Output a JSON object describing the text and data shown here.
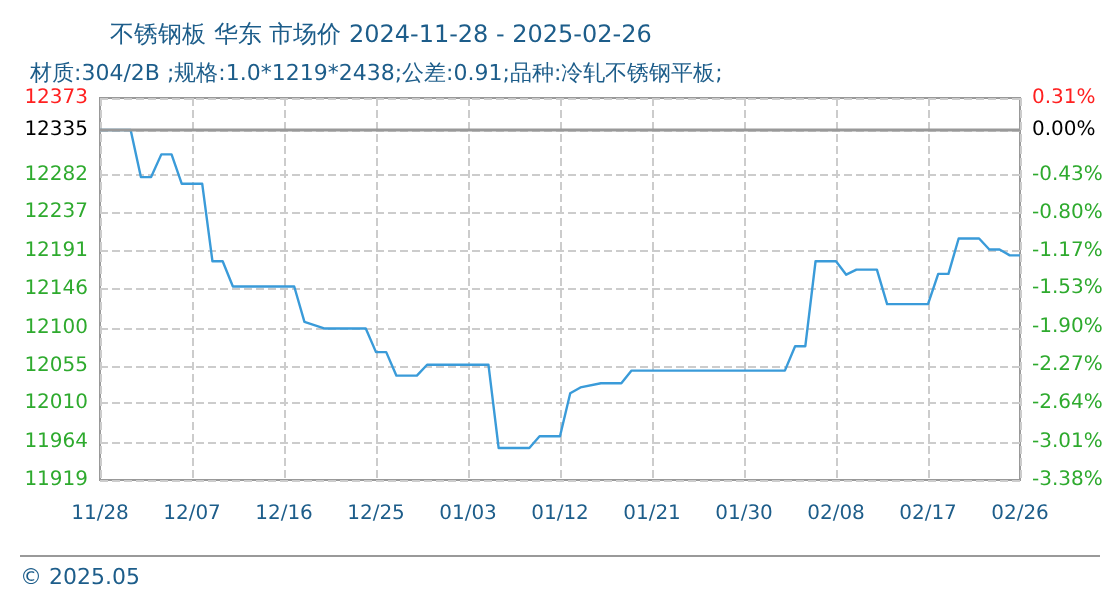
{
  "chart_data": {
    "type": "line",
    "title": "不锈钢板 华东 市场价 2024-11-28 - 2025-02-26",
    "subtitle": "材质:304/2B ;规格:1.0*1219*2438;公差:0.91;品种:冷轧不锈钢平板;",
    "annotations": [
      "© 2025.05"
    ],
    "x": [
      "2024-11-28",
      "2024-12-01",
      "2024-12-02",
      "2024-12-03",
      "2024-12-04",
      "2024-12-05",
      "2024-12-06",
      "2024-12-08",
      "2024-12-09",
      "2024-12-10",
      "2024-12-11",
      "2024-12-17",
      "2024-12-18",
      "2024-12-20",
      "2024-12-24",
      "2024-12-25",
      "2024-12-26",
      "2024-12-27",
      "2024-12-29",
      "2024-12-30",
      "2025-01-05",
      "2025-01-06",
      "2025-01-09",
      "2025-01-10",
      "2025-01-12",
      "2025-01-13",
      "2025-01-14",
      "2025-01-16",
      "2025-01-18",
      "2025-01-19",
      "2025-02-03",
      "2025-02-04",
      "2025-02-05",
      "2025-02-06",
      "2025-02-08",
      "2025-02-09",
      "2025-02-10",
      "2025-02-12",
      "2025-02-13",
      "2025-02-17",
      "2025-02-18",
      "2025-02-19",
      "2025-02-20",
      "2025-02-22",
      "2025-02-23",
      "2025-02-24",
      "2025-02-25",
      "2025-02-26"
    ],
    "series": [
      {
        "color": "#3a9bd9",
        "values": [
          12335,
          12335,
          12279,
          12279,
          12306,
          12306,
          12271,
          12271,
          12179,
          12179,
          12149,
          12149,
          12107,
          12099,
          12099,
          12071,
          12071,
          12043,
          12043,
          12056,
          12056,
          11957,
          11957,
          11971,
          11971,
          12022,
          12029,
          12034,
          12034,
          12049,
          12049,
          12078,
          12078,
          12179,
          12179,
          12163,
          12169,
          12169,
          12128,
          12128,
          12164,
          12164,
          12206,
          12206,
          12193,
          12193,
          12186,
          12186
        ]
      }
    ],
    "xlim": [
      "2024-11-28",
      "2025-02-26"
    ],
    "xticks": [
      {
        "value": "2024-11-28",
        "label": "11/28"
      },
      {
        "value": "2024-12-07",
        "label": "12/07"
      },
      {
        "value": "2024-12-16",
        "label": "12/16"
      },
      {
        "value": "2024-12-25",
        "label": "12/25"
      },
      {
        "value": "2025-01-03",
        "label": "01/03"
      },
      {
        "value": "2025-01-12",
        "label": "01/12"
      },
      {
        "value": "2025-01-21",
        "label": "01/21"
      },
      {
        "value": "2025-01-30",
        "label": "01/30"
      },
      {
        "value": "2025-02-08",
        "label": "02/08"
      },
      {
        "value": "2025-02-17",
        "label": "02/17"
      },
      {
        "value": "2025-02-26",
        "label": "02/26"
      }
    ],
    "ylim": [
      11919,
      12373
    ],
    "yticks": [
      11919,
      11964,
      12010,
      12055,
      12100,
      12146,
      12191,
      12237,
      12282,
      12335,
      12373
    ],
    "y2lim": [
      -3.38,
      0.31
    ],
    "y2ticks": [
      {
        "value": -3.38,
        "label": "-3.38%"
      },
      {
        "value": -3.01,
        "label": "-3.01%"
      },
      {
        "value": -2.64,
        "label": "-2.64%"
      },
      {
        "value": -2.27,
        "label": "-2.27%"
      },
      {
        "value": -1.9,
        "label": "-1.90%"
      },
      {
        "value": -1.53,
        "label": "-1.53%"
      },
      {
        "value": -1.17,
        "label": "-1.17%"
      },
      {
        "value": -0.8,
        "label": "-0.80%"
      },
      {
        "value": -0.43,
        "label": "-0.43%"
      },
      {
        "value": 0,
        "label": "0.00%"
      },
      {
        "value": 0.31,
        "label": "0.31%"
      }
    ],
    "ref_lines": [
      {
        "axis": "y",
        "value": 12335,
        "color": "#999999"
      }
    ],
    "grid": true,
    "marker": "none",
    "line_style": "solid"
  }
}
